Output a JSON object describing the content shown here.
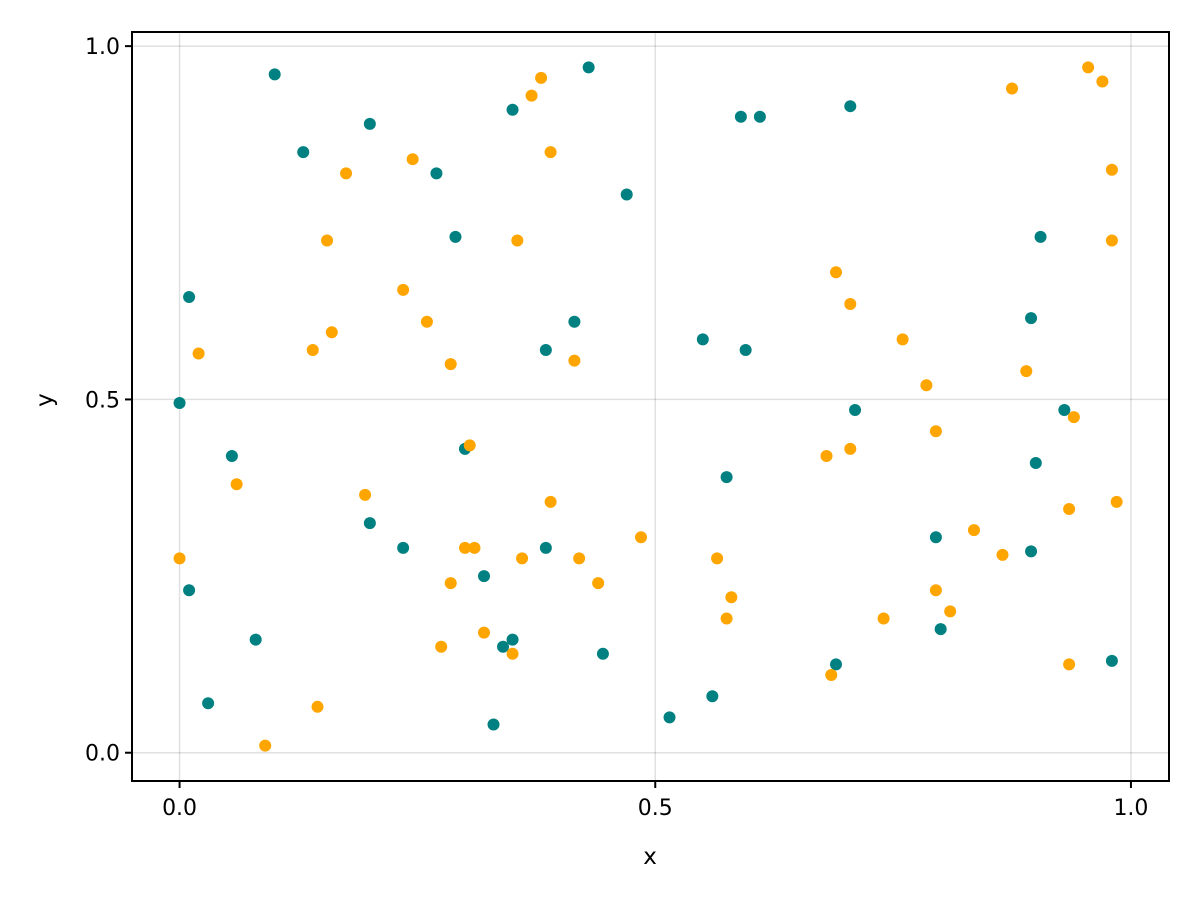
{
  "chart_data": {
    "type": "scatter",
    "title": "",
    "xlabel": "x",
    "ylabel": "y",
    "xlim": [
      -0.05,
      1.04
    ],
    "ylim": [
      -0.04,
      1.02
    ],
    "xticks": [
      0.0,
      0.5,
      1.0
    ],
    "xtick_labels": [
      "0.0",
      "0.5",
      "1.0"
    ],
    "yticks": [
      0.0,
      0.5,
      1.0
    ],
    "ytick_labels": [
      "0.0",
      "0.5",
      "1.0"
    ],
    "grid": true,
    "legend": "none",
    "series": [
      {
        "color": "#008080",
        "points": [
          [
            0.1,
            0.96
          ],
          [
            0.13,
            0.85
          ],
          [
            0.2,
            0.89
          ],
          [
            0.27,
            0.82
          ],
          [
            0.29,
            0.73
          ],
          [
            0.35,
            0.91
          ],
          [
            0.43,
            0.97
          ],
          [
            0.47,
            0.79
          ],
          [
            0.59,
            0.9
          ],
          [
            0.61,
            0.9
          ],
          [
            0.705,
            0.915
          ],
          [
            0.905,
            0.73
          ],
          [
            0.01,
            0.645
          ],
          [
            0.415,
            0.61
          ],
          [
            0.385,
            0.57
          ],
          [
            0.55,
            0.585
          ],
          [
            0.595,
            0.57
          ],
          [
            0.895,
            0.615
          ],
          [
            0.0,
            0.495
          ],
          [
            0.71,
            0.485
          ],
          [
            0.93,
            0.485
          ],
          [
            0.055,
            0.42
          ],
          [
            0.3,
            0.43
          ],
          [
            0.9,
            0.41
          ],
          [
            0.575,
            0.39
          ],
          [
            0.2,
            0.325
          ],
          [
            0.235,
            0.29
          ],
          [
            0.385,
            0.29
          ],
          [
            0.795,
            0.305
          ],
          [
            0.895,
            0.285
          ],
          [
            0.32,
            0.25
          ],
          [
            0.01,
            0.23
          ],
          [
            0.08,
            0.16
          ],
          [
            0.34,
            0.15
          ],
          [
            0.35,
            0.16
          ],
          [
            0.445,
            0.14
          ],
          [
            0.8,
            0.175
          ],
          [
            0.69,
            0.125
          ],
          [
            0.98,
            0.13
          ],
          [
            0.03,
            0.07
          ],
          [
            0.56,
            0.08
          ],
          [
            0.33,
            0.04
          ],
          [
            0.515,
            0.05
          ]
        ]
      },
      {
        "color": "#FFA500",
        "points": [
          [
            0.38,
            0.955
          ],
          [
            0.37,
            0.93
          ],
          [
            0.955,
            0.97
          ],
          [
            0.97,
            0.95
          ],
          [
            0.875,
            0.94
          ],
          [
            0.39,
            0.85
          ],
          [
            0.245,
            0.84
          ],
          [
            0.175,
            0.82
          ],
          [
            0.98,
            0.825
          ],
          [
            0.155,
            0.725
          ],
          [
            0.355,
            0.725
          ],
          [
            0.98,
            0.725
          ],
          [
            0.69,
            0.68
          ],
          [
            0.235,
            0.655
          ],
          [
            0.705,
            0.635
          ],
          [
            0.26,
            0.61
          ],
          [
            0.16,
            0.595
          ],
          [
            0.14,
            0.57
          ],
          [
            0.02,
            0.565
          ],
          [
            0.76,
            0.585
          ],
          [
            0.285,
            0.55
          ],
          [
            0.415,
            0.555
          ],
          [
            0.89,
            0.54
          ],
          [
            0.785,
            0.52
          ],
          [
            0.94,
            0.475
          ],
          [
            0.795,
            0.455
          ],
          [
            0.305,
            0.435
          ],
          [
            0.705,
            0.43
          ],
          [
            0.68,
            0.42
          ],
          [
            0.06,
            0.38
          ],
          [
            0.195,
            0.365
          ],
          [
            0.39,
            0.355
          ],
          [
            0.985,
            0.355
          ],
          [
            0.935,
            0.345
          ],
          [
            0.835,
            0.315
          ],
          [
            0.485,
            0.305
          ],
          [
            0.3,
            0.29
          ],
          [
            0.31,
            0.29
          ],
          [
            0.36,
            0.275
          ],
          [
            0.42,
            0.275
          ],
          [
            0.565,
            0.275
          ],
          [
            0.865,
            0.28
          ],
          [
            0.285,
            0.24
          ],
          [
            0.44,
            0.24
          ],
          [
            0.795,
            0.23
          ],
          [
            0.58,
            0.22
          ],
          [
            0.81,
            0.2
          ],
          [
            0.74,
            0.19
          ],
          [
            0.575,
            0.19
          ],
          [
            0.32,
            0.17
          ],
          [
            0.275,
            0.15
          ],
          [
            0.35,
            0.14
          ],
          [
            0.935,
            0.125
          ],
          [
            0.685,
            0.11
          ],
          [
            0.145,
            0.065
          ],
          [
            0.09,
            0.01
          ],
          [
            0.0,
            0.275
          ]
        ]
      }
    ]
  }
}
